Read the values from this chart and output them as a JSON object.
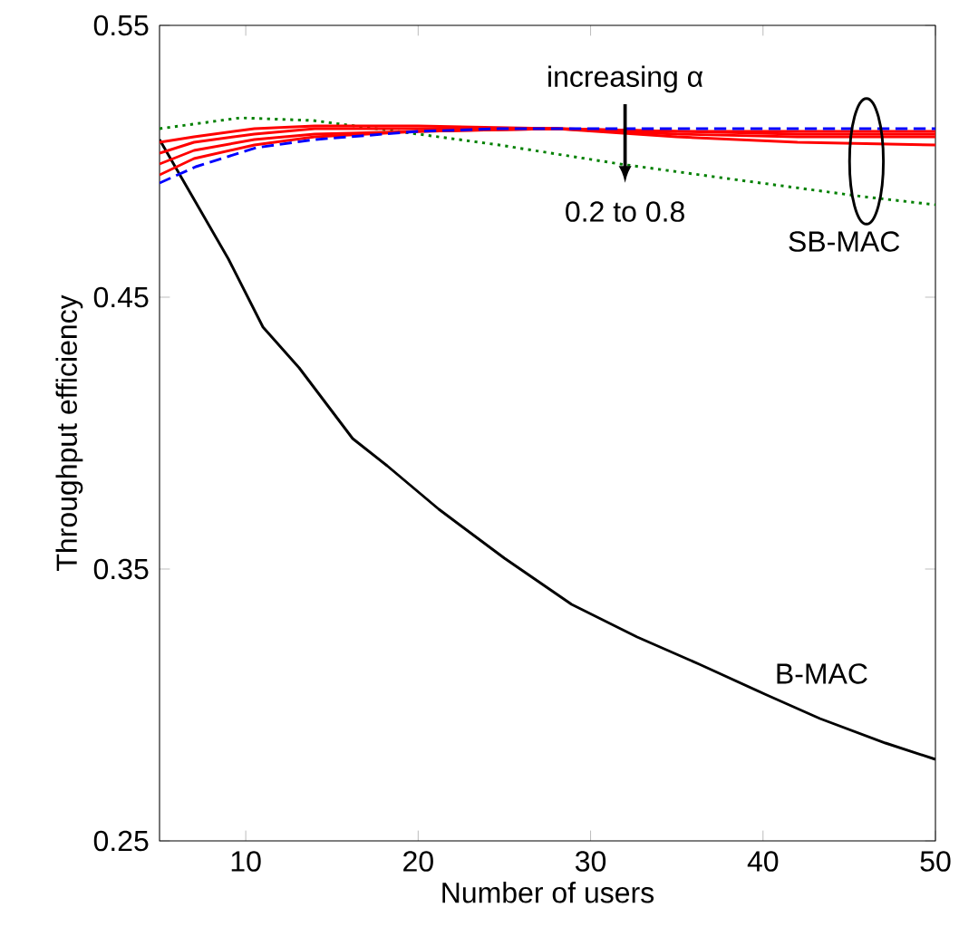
{
  "chart_data": {
    "type": "line",
    "xlabel": "Number of users",
    "ylabel": "Throughput efficiency",
    "xlim": [
      5,
      50
    ],
    "ylim": [
      0.25,
      0.55
    ],
    "xticks": [
      10,
      20,
      30,
      40,
      50
    ],
    "yticks": [
      0.25,
      0.35,
      0.45,
      0.55
    ],
    "grid": false,
    "legend": false,
    "marker": "none",
    "line_style": "solid",
    "series": [
      {
        "name": "B-MAC",
        "color": "#000000",
        "x": [
          5,
          7,
          9,
          11,
          13.1,
          16.2,
          18.2,
          21.2,
          25,
          28.9,
          32.7,
          36.3,
          40.1,
          43.3,
          47.1,
          50
        ],
        "values": [
          0.508,
          0.486,
          0.464,
          0.439,
          0.424,
          0.398,
          0.388,
          0.372,
          0.354,
          0.337,
          0.325,
          0.315,
          0.304,
          0.295,
          0.286,
          0.28
        ]
      },
      {
        "color": "#008000",
        "line_style": "dotted",
        "x": [
          5,
          9.7,
          13.9,
          20,
          24.7,
          31.7,
          38.7,
          45.8,
          50
        ],
        "values": [
          0.512,
          0.516,
          0.515,
          0.51,
          0.506,
          0.499,
          0.493,
          0.487,
          0.484
        ]
      },
      {
        "color": "#ff0000",
        "x": [
          5,
          7,
          10.5,
          14,
          20,
          28,
          35,
          42,
          50
        ],
        "values": [
          0.507,
          0.509,
          0.512,
          0.513,
          0.513,
          0.512,
          0.509,
          0.507,
          0.506
        ]
      },
      {
        "color": "#ff0000",
        "x": [
          5,
          7,
          10.5,
          14,
          20,
          28,
          35,
          42,
          50
        ],
        "values": [
          0.503,
          0.507,
          0.51,
          0.512,
          0.512,
          0.512,
          0.51,
          0.509,
          0.509
        ]
      },
      {
        "color": "#ff0000",
        "x": [
          5,
          7,
          10.5,
          14,
          20,
          28,
          35,
          42,
          50
        ],
        "values": [
          0.499,
          0.504,
          0.508,
          0.51,
          0.511,
          0.512,
          0.511,
          0.51,
          0.51
        ]
      },
      {
        "color": "#ff0000",
        "x": [
          5,
          7,
          10.5,
          14,
          20,
          28,
          35,
          42,
          50
        ],
        "values": [
          0.495,
          0.501,
          0.506,
          0.509,
          0.511,
          0.512,
          0.511,
          0.511,
          0.511
        ]
      },
      {
        "color": "#0000ff",
        "line_style": "dashed",
        "x": [
          5,
          7.1,
          10.6,
          14,
          20,
          24.7,
          35,
          42,
          50
        ],
        "values": [
          0.492,
          0.498,
          0.505,
          0.508,
          0.511,
          0.512,
          0.512,
          0.512,
          0.512
        ]
      }
    ],
    "annotations": [
      {
        "text": "increasing α",
        "x": 32,
        "y": 0.512
      },
      "0.2 to 0.8",
      "SB-MAC"
    ]
  }
}
